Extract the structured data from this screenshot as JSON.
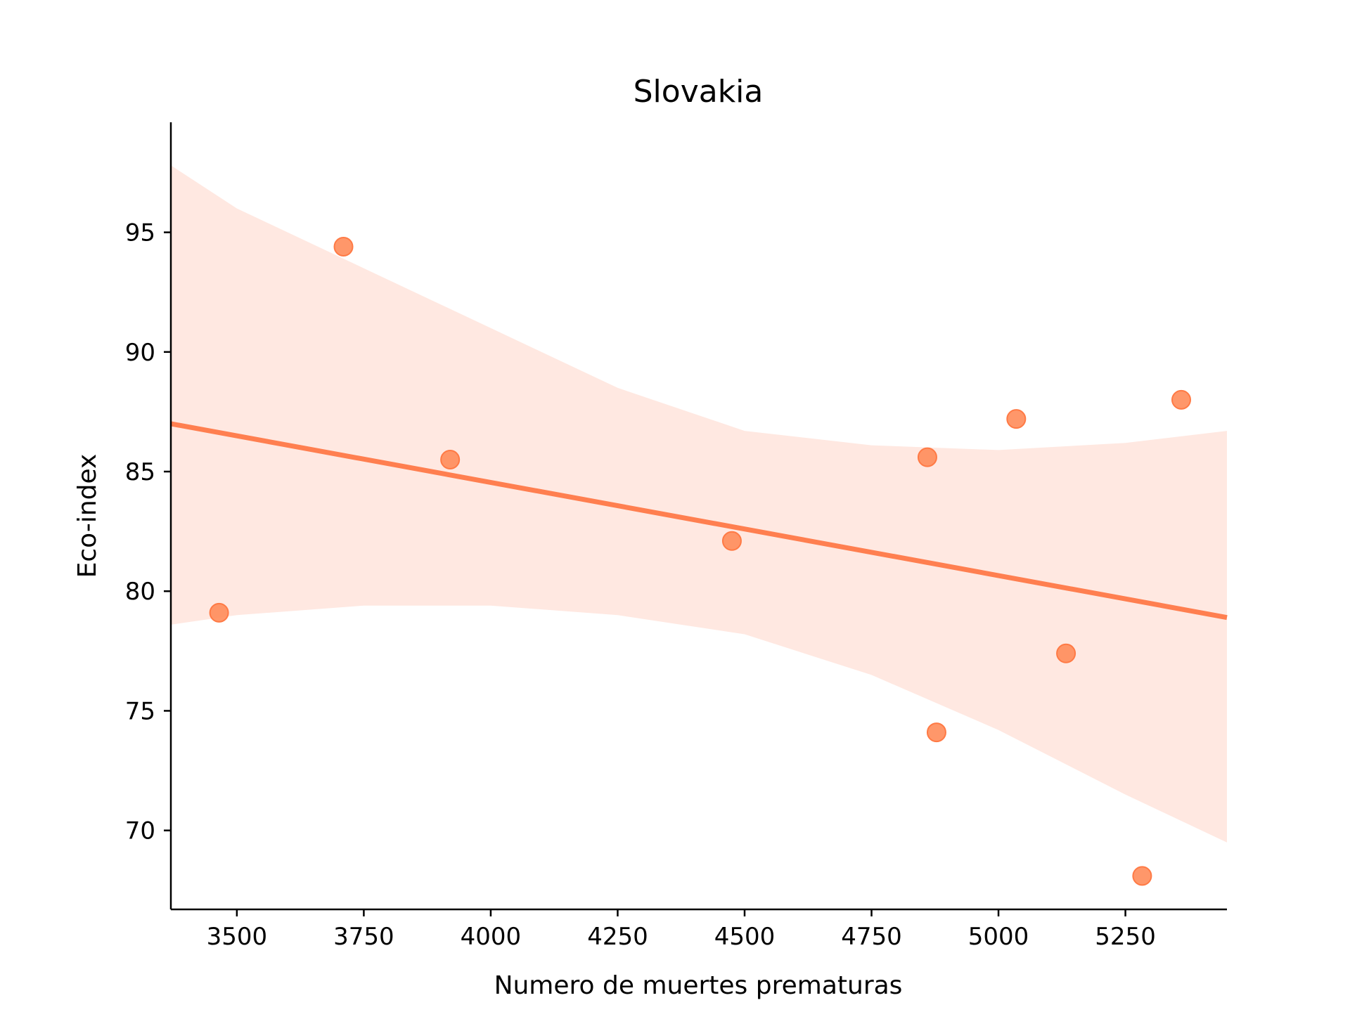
{
  "chart_data": {
    "type": "scatter",
    "title": "Slovakia",
    "xlabel": "Numero de muertes prematuras",
    "ylabel": "Eco-index",
    "xlim": [
      3370,
      5450
    ],
    "ylim": [
      66.7,
      99.6
    ],
    "xticks": [
      3500,
      3750,
      4000,
      4250,
      4500,
      4750,
      5000,
      5250
    ],
    "yticks": [
      70,
      75,
      80,
      85,
      90,
      95
    ],
    "grid": false,
    "legend": "none",
    "colors": {
      "points": "#ff8c5a",
      "line": "#ff7f50",
      "band": "#ffe8e1"
    },
    "points": [
      {
        "x": 3465,
        "y": 79.1
      },
      {
        "x": 3710,
        "y": 94.4
      },
      {
        "x": 3920,
        "y": 85.5
      },
      {
        "x": 4475,
        "y": 82.1
      },
      {
        "x": 4860,
        "y": 85.6
      },
      {
        "x": 4878,
        "y": 74.1
      },
      {
        "x": 5035,
        "y": 87.2
      },
      {
        "x": 5133,
        "y": 77.4
      },
      {
        "x": 5283,
        "y": 68.1
      },
      {
        "x": 5360,
        "y": 88.0
      }
    ],
    "regression_line": {
      "x": [
        3370,
        5450
      ],
      "y": [
        87.0,
        78.9
      ]
    },
    "confidence_band": {
      "x": [
        3370,
        3500,
        3750,
        4000,
        4250,
        4500,
        4750,
        5000,
        5250,
        5450
      ],
      "upper": [
        97.8,
        96.0,
        93.5,
        91.0,
        88.5,
        86.7,
        86.1,
        85.9,
        86.2,
        86.7
      ],
      "lower": [
        78.6,
        79.0,
        79.4,
        79.4,
        79.0,
        78.2,
        76.5,
        74.2,
        71.5,
        69.5
      ]
    }
  }
}
